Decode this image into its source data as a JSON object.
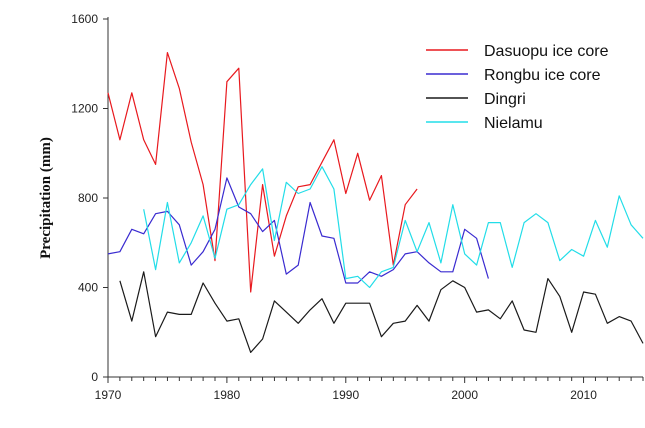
{
  "chart_data": {
    "type": "line",
    "xlabel": "",
    "ylabel": "Precipitation (mm)",
    "xlim": [
      1970,
      2015
    ],
    "ylim": [
      0,
      1600
    ],
    "xticks": [
      1970,
      1980,
      1990,
      2000,
      2010
    ],
    "yticks": [
      0,
      400,
      800,
      1200,
      1600
    ],
    "legend_position": "top-right",
    "series": [
      {
        "name": "Dasuopu ice core",
        "color": "#e8191e",
        "x": [
          1970,
          1971,
          1972,
          1973,
          1974,
          1975,
          1976,
          1977,
          1978,
          1979,
          1980,
          1981,
          1982,
          1983,
          1984,
          1985,
          1986,
          1987,
          1988,
          1989,
          1990,
          1991,
          1992,
          1993,
          1994,
          1995,
          1996
        ],
        "y": [
          1270,
          1060,
          1270,
          1060,
          950,
          1450,
          1290,
          1050,
          860,
          520,
          1320,
          1380,
          380,
          860,
          540,
          720,
          850,
          860,
          960,
          1060,
          820,
          1000,
          790,
          900,
          500,
          770,
          840
        ]
      },
      {
        "name": "Rongbu ice core",
        "color": "#3a2bd0",
        "x": [
          1970,
          1971,
          1972,
          1973,
          1974,
          1975,
          1976,
          1977,
          1978,
          1979,
          1980,
          1981,
          1982,
          1983,
          1984,
          1985,
          1986,
          1987,
          1988,
          1989,
          1990,
          1991,
          1992,
          1993,
          1994,
          1995,
          1996,
          1997,
          1998,
          1999,
          2000,
          2001,
          2002
        ],
        "y": [
          550,
          560,
          660,
          640,
          730,
          740,
          680,
          500,
          560,
          660,
          890,
          760,
          730,
          650,
          700,
          460,
          500,
          780,
          630,
          620,
          420,
          420,
          470,
          450,
          480,
          550,
          560,
          510,
          470,
          470,
          660,
          620,
          440
        ]
      },
      {
        "name": "Dingri",
        "color": "#1a1a1a",
        "x": [
          1971,
          1972,
          1973,
          1974,
          1975,
          1976,
          1977,
          1978,
          1979,
          1980,
          1981,
          1982,
          1983,
          1984,
          1985,
          1986,
          1987,
          1988,
          1989,
          1990,
          1991,
          1992,
          1993,
          1994,
          1995,
          1996,
          1997,
          1998,
          1999,
          2000,
          2001,
          2002,
          2003,
          2004,
          2005,
          2006,
          2007,
          2008,
          2009,
          2010,
          2011,
          2012,
          2013,
          2014,
          2015
        ],
        "y": [
          430,
          250,
          470,
          180,
          290,
          280,
          280,
          420,
          330,
          250,
          260,
          110,
          170,
          340,
          290,
          240,
          300,
          350,
          240,
          330,
          330,
          330,
          180,
          240,
          250,
          320,
          250,
          390,
          430,
          400,
          290,
          300,
          260,
          340,
          210,
          200,
          440,
          360,
          200,
          380,
          370,
          240,
          270,
          250,
          150
        ]
      },
      {
        "name": "Nielamu",
        "color": "#22dde8",
        "x": [
          1973,
          1974,
          1975,
          1976,
          1977,
          1978,
          1979,
          1980,
          1981,
          1982,
          1983,
          1984,
          1985,
          1986,
          1987,
          1988,
          1989,
          1990,
          1991,
          1992,
          1993,
          1994,
          1995,
          1996,
          1997,
          1998,
          1999,
          2000,
          2001,
          2002,
          2003,
          2004,
          2005,
          2006,
          2007,
          2008,
          2009,
          2010,
          2011,
          2012,
          2013,
          2014,
          2015
        ],
        "y": [
          750,
          480,
          780,
          510,
          600,
          720,
          530,
          750,
          770,
          860,
          930,
          610,
          870,
          820,
          840,
          940,
          840,
          440,
          450,
          400,
          470,
          490,
          700,
          560,
          690,
          510,
          770,
          550,
          500,
          690,
          690,
          490,
          690,
          730,
          690,
          520,
          570,
          540,
          700,
          580,
          810,
          680,
          620
        ]
      }
    ]
  }
}
